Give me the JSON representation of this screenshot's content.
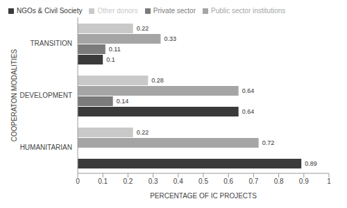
{
  "chart_data": {
    "type": "bar",
    "orientation": "horizontal",
    "legend": "top-left",
    "data_labels": true,
    "grid": false,
    "xlabel": "PERCENTAGE OF IC PROJECTS",
    "ylabel": "COOPERATON MODALITIES",
    "categories": [
      "TRANSITION",
      "DEVELOPMENT",
      "HUMANITARIAN"
    ],
    "series": [
      {
        "name": "Other donors",
        "color": "#c9c9c9",
        "values": [
          0.22,
          0.28,
          0.22
        ]
      },
      {
        "name": "Public sector institutions",
        "color": "#a5a5a5",
        "values": [
          0.33,
          0.64,
          0.72
        ]
      },
      {
        "name": "Private sector",
        "color": "#7b7b7b",
        "values": [
          0.11,
          0.14,
          null
        ]
      },
      {
        "name": "NGOs & Civil Society",
        "color": "#3a3a3a",
        "values": [
          0.1,
          0.64,
          0.89
        ]
      }
    ],
    "xlim": [
      0,
      1
    ],
    "xticks": [
      0,
      0.1,
      0.2,
      0.3,
      0.4,
      0.5,
      0.6,
      0.7,
      0.8,
      0.9,
      1
    ]
  }
}
